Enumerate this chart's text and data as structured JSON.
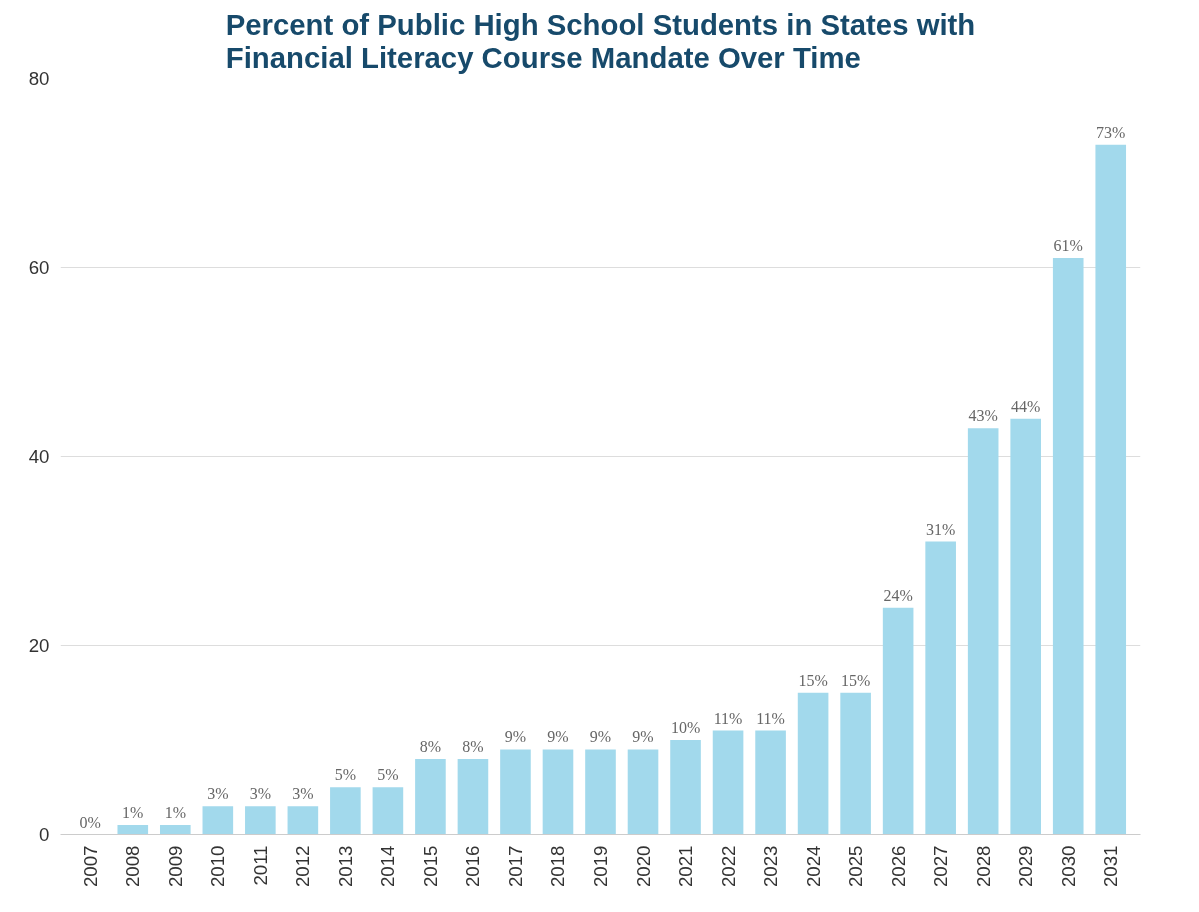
{
  "chart_data": {
    "type": "bar",
    "title": "Percent of Public High School Students in States with\nFinancial Literacy Course Mandate Over Time",
    "categories": [
      "2007",
      "2008",
      "2009",
      "2010",
      "2011",
      "2012",
      "2013",
      "2014",
      "2015",
      "2016",
      "2017",
      "2018",
      "2019",
      "2020",
      "2021",
      "2022",
      "2023",
      "2024",
      "2025",
      "2026",
      "2027",
      "2028",
      "2029",
      "2030",
      "2031"
    ],
    "values": [
      0,
      1,
      1,
      3,
      3,
      3,
      5,
      5,
      8,
      8,
      9,
      9,
      9,
      9,
      10,
      11,
      11,
      15,
      15,
      24,
      31,
      43,
      44,
      61,
      73
    ],
    "value_labels": [
      "0%",
      "1%",
      "1%",
      "3%",
      "3%",
      "3%",
      "5%",
      "5%",
      "8%",
      "8%",
      "9%",
      "9%",
      "9%",
      "9%",
      "10%",
      "11%",
      "11%",
      "15%",
      "15%",
      "24%",
      "31%",
      "43%",
      "44%",
      "61%",
      "73%"
    ],
    "color": "#a2d9ec",
    "ylim": [
      0,
      80
    ],
    "yticks": [
      0,
      20,
      40,
      60,
      80
    ],
    "grid": "y"
  }
}
